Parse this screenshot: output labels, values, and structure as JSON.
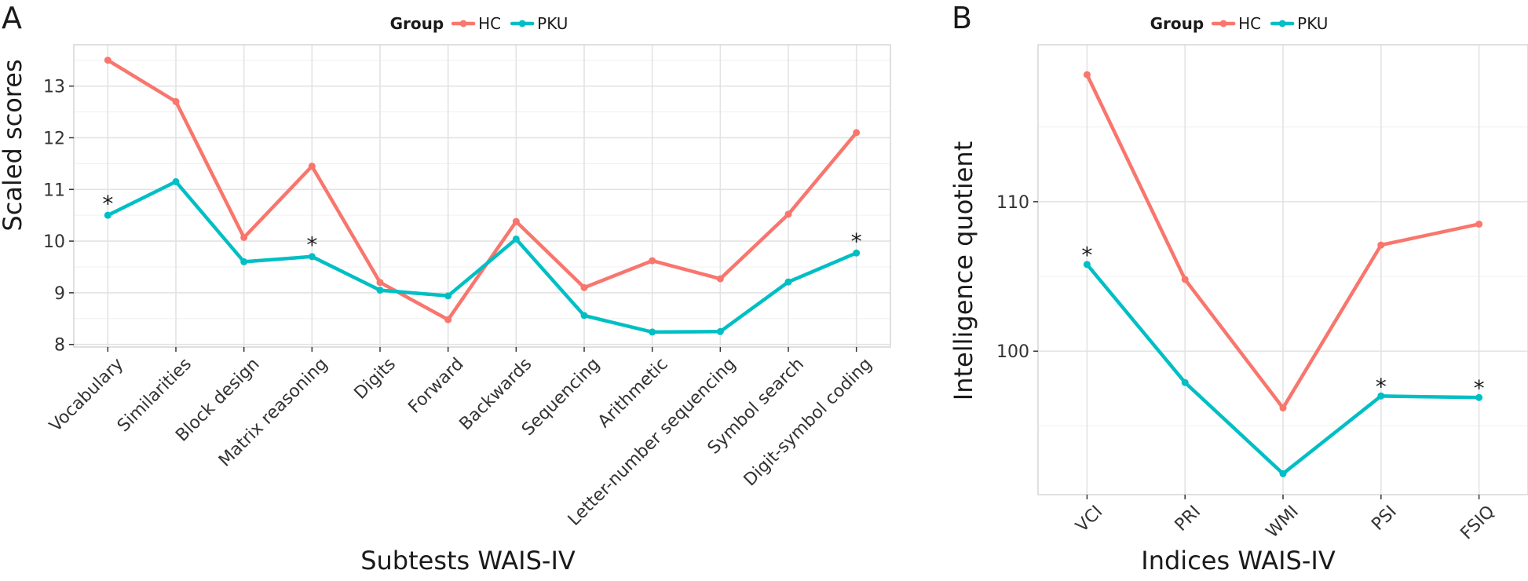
{
  "chart_data": [
    {
      "type": "line",
      "panel_label": "A",
      "legend": {
        "title": "Group",
        "entries": [
          "HC",
          "PKU"
        ],
        "position": "top"
      },
      "categories": [
        "Vocabulary",
        "Similarities",
        "Block design",
        "Matrix reasoning",
        "Digits",
        "Forward",
        "Backwards",
        "Sequencing",
        "Arithmetic",
        "Letter-number sequencing",
        "Symbol search",
        "Digit-symbol coding"
      ],
      "series": [
        {
          "name": "HC",
          "color": "#F8766D",
          "values": [
            13.5,
            12.7,
            10.07,
            11.45,
            9.2,
            8.48,
            10.38,
            9.1,
            9.62,
            9.27,
            10.52,
            12.1
          ]
        },
        {
          "name": "PKU",
          "color": "#00BFC4",
          "values": [
            10.5,
            11.15,
            9.6,
            9.7,
            9.05,
            8.94,
            10.04,
            8.56,
            8.24,
            8.25,
            9.21,
            9.77
          ]
        }
      ],
      "annotations": [
        {
          "text": "*",
          "category": "Vocabulary",
          "y": 10.73
        },
        {
          "text": "*",
          "category": "Matrix reasoning",
          "y": 9.93
        },
        {
          "text": "*",
          "category": "Digit-symbol coding",
          "y": 10.0
        }
      ],
      "xlabel": "Subtests WAIS-IV",
      "ylabel": "Scaled scores",
      "ylim": [
        7.95,
        13.8
      ],
      "yticks": [
        8,
        9,
        10,
        11,
        12,
        13
      ],
      "grid": true
    },
    {
      "type": "line",
      "panel_label": "B",
      "legend": {
        "title": "Group",
        "entries": [
          "HC",
          "PKU"
        ],
        "position": "top"
      },
      "categories": [
        "VCI",
        "PRI",
        "WMI",
        "PSI",
        "FSIQ"
      ],
      "series": [
        {
          "name": "HC",
          "color": "#F8766D",
          "values": [
            118.5,
            104.8,
            96.2,
            107.1,
            108.5
          ]
        },
        {
          "name": "PKU",
          "color": "#00BFC4",
          "values": [
            105.8,
            97.9,
            91.8,
            97.0,
            96.9
          ]
        }
      ],
      "annotations": [
        {
          "text": "*",
          "category": "VCI",
          "y": 106.45
        },
        {
          "text": "*",
          "category": "PSI",
          "y": 97.65
        },
        {
          "text": "*",
          "category": "FSIQ",
          "y": 97.55
        }
      ],
      "xlabel": "Indices WAIS-IV",
      "ylabel": "Intelligence quotient",
      "ylim": [
        90.4,
        120.5
      ],
      "yticks": [
        100,
        110
      ],
      "grid": true
    }
  ]
}
